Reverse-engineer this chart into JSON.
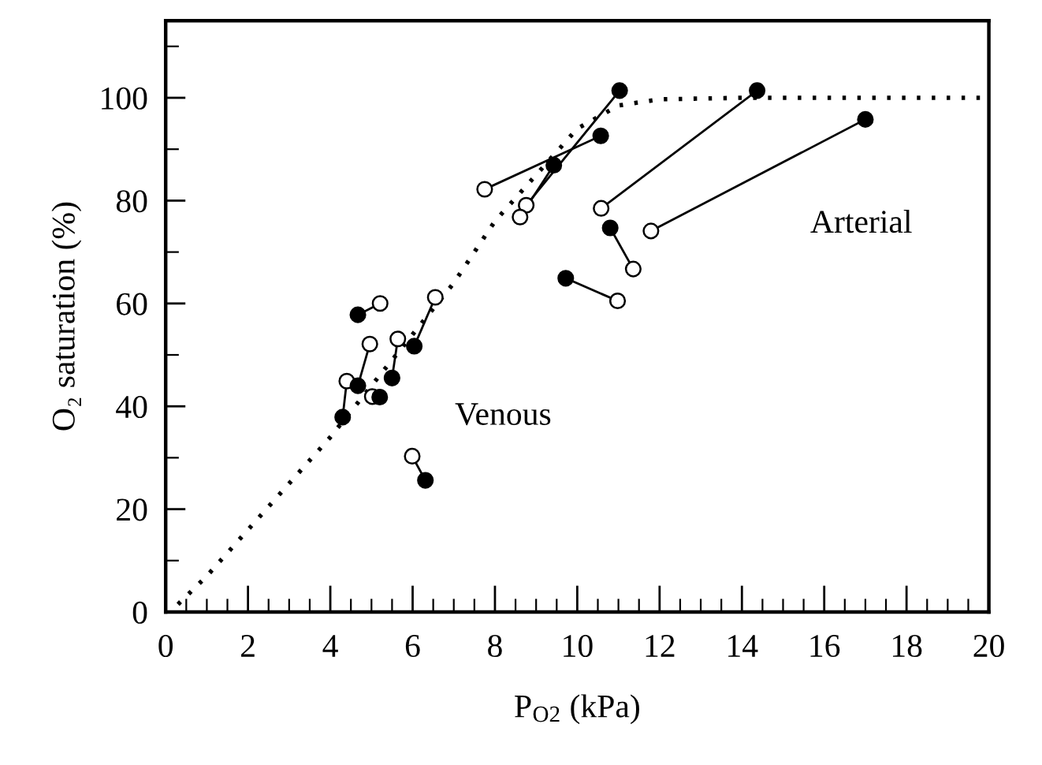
{
  "chart_data": {
    "type": "scatter",
    "xlabel": "P$_{O2}$ (kPa)",
    "ylabel": "O₂ saturation (%)",
    "annotations": [
      "Venous",
      "Arterial"
    ],
    "xlim": [
      0,
      20
    ],
    "xticks": [
      0,
      2,
      4,
      6,
      8,
      10,
      12,
      14,
      16,
      18,
      20
    ],
    "ylim": [
      0,
      115
    ],
    "yticks": [
      0,
      20,
      40,
      60,
      80,
      100
    ],
    "grid": false,
    "series": [
      {
        "type": "line",
        "line_style": "dotted",
        "color": "#000000",
        "marker": "none",
        "x": [
          0.3,
          1,
          2,
          3,
          4,
          5,
          6,
          7,
          8,
          9,
          10,
          11,
          12,
          14,
          20
        ],
        "values": [
          1.5,
          7,
          16,
          25,
          34,
          44,
          54,
          64,
          76,
          85,
          94,
          98.5,
          99.7,
          100,
          100
        ]
      },
      {
        "type": "line",
        "line_style": "solid",
        "color": "#000000",
        "marker": "none",
        "x": [
          4.67,
          5.21
        ],
        "values": [
          57.8,
          60.0
        ]
      },
      {
        "type": "line",
        "line_style": "solid",
        "color": "#000000",
        "marker": "none",
        "x": [
          4.3,
          4.4
        ],
        "values": [
          37.9,
          44.9
        ]
      },
      {
        "type": "line",
        "line_style": "solid",
        "color": "#000000",
        "marker": "none",
        "x": [
          4.67,
          4.96
        ],
        "values": [
          44.0,
          52.1
        ]
      },
      {
        "type": "line",
        "line_style": "solid",
        "color": "#000000",
        "marker": "none",
        "x": [
          5.5,
          5.64
        ],
        "values": [
          45.5,
          53.1
        ]
      },
      {
        "type": "line",
        "line_style": "solid",
        "color": "#000000",
        "marker": "none",
        "x": [
          6.04,
          6.55
        ],
        "values": [
          51.7,
          61.2
        ]
      },
      {
        "type": "line",
        "line_style": "solid",
        "color": "#000000",
        "marker": "none",
        "x": [
          6.31,
          5.99
        ],
        "values": [
          25.6,
          30.3
        ]
      },
      {
        "type": "line",
        "line_style": "solid",
        "color": "#000000",
        "marker": "none",
        "x": [
          11.03,
          8.76
        ],
        "values": [
          101.4,
          79.1
        ]
      },
      {
        "type": "line",
        "line_style": "solid",
        "color": "#000000",
        "marker": "none",
        "x": [
          9.43,
          8.61
        ],
        "values": [
          86.9,
          76.8
        ]
      },
      {
        "type": "line",
        "line_style": "solid",
        "color": "#000000",
        "marker": "none",
        "x": [
          10.57,
          7.75
        ],
        "values": [
          92.6,
          82.2
        ]
      },
      {
        "type": "line",
        "line_style": "solid",
        "color": "#000000",
        "marker": "none",
        "x": [
          14.37,
          10.58
        ],
        "values": [
          101.4,
          78.5
        ]
      },
      {
        "type": "line",
        "line_style": "solid",
        "color": "#000000",
        "marker": "none",
        "x": [
          17.0,
          11.79
        ],
        "values": [
          95.8,
          74.1
        ]
      },
      {
        "type": "line",
        "line_style": "solid",
        "color": "#000000",
        "marker": "none",
        "x": [
          10.8,
          11.36
        ],
        "values": [
          74.7,
          66.7
        ]
      },
      {
        "type": "line",
        "line_style": "solid",
        "color": "#000000",
        "marker": "none",
        "x": [
          9.72,
          10.98
        ],
        "values": [
          64.9,
          60.5
        ]
      },
      {
        "color": "#ffffff",
        "marker": "circle",
        "x": [
          5.21,
          4.4,
          4.96,
          5.02,
          5.64,
          6.55,
          5.99,
          8.76,
          8.61,
          7.75,
          10.58,
          11.79,
          11.36,
          10.98
        ],
        "values": [
          60.0,
          44.9,
          52.1,
          41.9,
          53.1,
          61.2,
          30.3,
          79.1,
          76.8,
          82.2,
          78.5,
          74.1,
          66.7,
          60.5
        ]
      },
      {
        "color": "#000000",
        "marker": "circle",
        "x": [
          4.67,
          4.3,
          4.67,
          5.2,
          5.5,
          6.04,
          6.31,
          11.03,
          9.43,
          10.57,
          14.37,
          17.0,
          10.8,
          9.72
        ],
        "values": [
          57.8,
          37.9,
          44.0,
          41.8,
          45.5,
          51.7,
          25.6,
          101.4,
          86.9,
          92.6,
          101.4,
          95.8,
          74.7,
          64.9
        ]
      }
    ]
  }
}
